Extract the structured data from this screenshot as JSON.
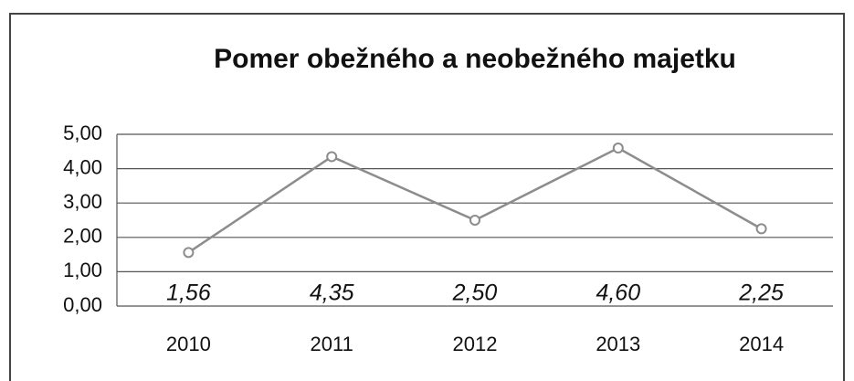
{
  "chart_data": {
    "type": "line",
    "title": "Pomer obežného a neobežného majetku",
    "categories": [
      "2010",
      "2011",
      "2012",
      "2013",
      "2014"
    ],
    "values": [
      1.56,
      4.35,
      2.5,
      4.6,
      2.25
    ],
    "value_labels": [
      "1,56",
      "4,35",
      "2,50",
      "4,60",
      "2,25"
    ],
    "color": "#8c8c8c",
    "ylim": [
      0,
      5
    ],
    "yticks": [
      {
        "value": 0,
        "label": "0,00"
      },
      {
        "value": 1,
        "label": "1,00"
      },
      {
        "value": 2,
        "label": "2,00"
      },
      {
        "value": 3,
        "label": "3,00"
      },
      {
        "value": 4,
        "label": "4,00"
      },
      {
        "value": 5,
        "label": "5,00"
      }
    ],
    "grid": true
  }
}
